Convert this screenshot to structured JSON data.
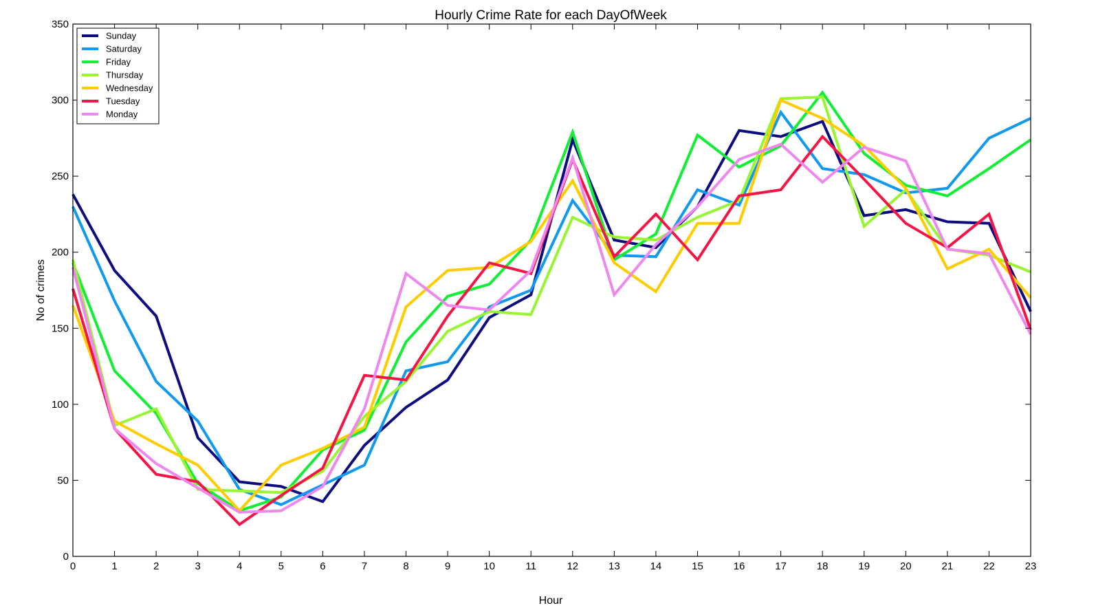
{
  "chart_data": {
    "type": "line",
    "title": "Hourly Crime Rate for each DayOfWeek",
    "xlabel": "Hour",
    "ylabel": "No of crimes",
    "xlim": [
      0,
      23
    ],
    "ylim": [
      0,
      350
    ],
    "x": [
      0,
      1,
      2,
      3,
      4,
      5,
      6,
      7,
      8,
      9,
      10,
      11,
      12,
      13,
      14,
      15,
      16,
      17,
      18,
      19,
      20,
      21,
      22,
      23
    ],
    "x_ticks": [
      "0",
      "1",
      "2",
      "3",
      "4",
      "5",
      "6",
      "7",
      "8",
      "9",
      "10",
      "11",
      "12",
      "13",
      "14",
      "15",
      "16",
      "17",
      "18",
      "19",
      "20",
      "21",
      "22",
      "23"
    ],
    "y_ticks": [
      "0",
      "50",
      "100",
      "150",
      "200",
      "250",
      "300",
      "350"
    ],
    "grid": false,
    "legend_position": "top-left",
    "series": [
      {
        "name": "Sunday",
        "color": "#0d0d80",
        "values": [
          238,
          188,
          158,
          78,
          49,
          46,
          36,
          73,
          98,
          116,
          157,
          172,
          274,
          208,
          203,
          230,
          280,
          276,
          286,
          224,
          228,
          220,
          219,
          161
        ]
      },
      {
        "name": "Saturday",
        "color": "#1199ee",
        "values": [
          230,
          168,
          115,
          89,
          44,
          34,
          47,
          60,
          122,
          128,
          164,
          175,
          234,
          198,
          197,
          241,
          231,
          292,
          255,
          251,
          239,
          242,
          275,
          288
        ]
      },
      {
        "name": "Friday",
        "color": "#11ee33",
        "values": [
          193,
          122,
          94,
          48,
          30,
          39,
          70,
          83,
          141,
          171,
          179,
          208,
          279,
          195,
          212,
          277,
          256,
          270,
          305,
          265,
          244,
          237,
          255,
          274
        ]
      },
      {
        "name": "Thursday",
        "color": "#99f533",
        "values": [
          195,
          86,
          97,
          44,
          43,
          42,
          56,
          92,
          115,
          148,
          161,
          159,
          223,
          210,
          208,
          223,
          234,
          301,
          302,
          217,
          241,
          202,
          198,
          187
        ]
      },
      {
        "name": "Wednesday",
        "color": "#ffcc00",
        "values": [
          165,
          89,
          74,
          60,
          30,
          60,
          71,
          85,
          164,
          188,
          190,
          207,
          247,
          193,
          174,
          219,
          219,
          300,
          288,
          270,
          242,
          189,
          202,
          170
        ]
      },
      {
        "name": "Tuesday",
        "color": "#f51545",
        "values": [
          176,
          84,
          54,
          49,
          21,
          40,
          58,
          119,
          116,
          158,
          193,
          186,
          261,
          197,
          225,
          195,
          237,
          241,
          276,
          248,
          219,
          203,
          225,
          149
        ]
      },
      {
        "name": "Monday",
        "color": "#ee88ee",
        "values": [
          190,
          84,
          61,
          45,
          29,
          30,
          46,
          97,
          186,
          165,
          162,
          188,
          262,
          172,
          205,
          230,
          261,
          271,
          246,
          269,
          260,
          202,
          199,
          146
        ]
      }
    ]
  }
}
